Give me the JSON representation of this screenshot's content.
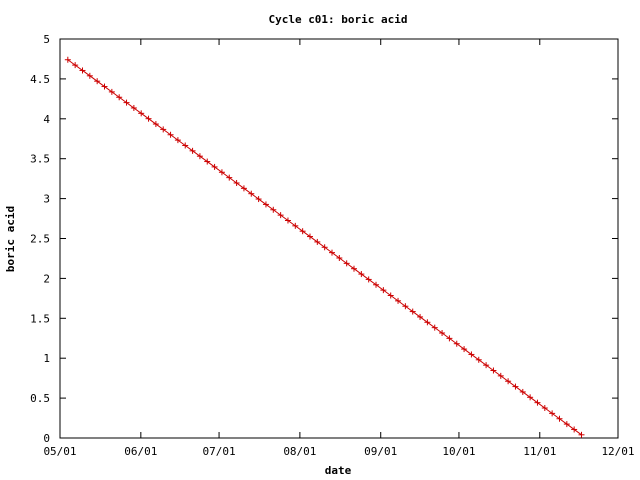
{
  "chart_data": {
    "type": "line",
    "title": "Cycle c01: boric acid",
    "xlabel": "date",
    "ylabel": "boric acid",
    "x_ticks": [
      "05/01",
      "06/01",
      "07/01",
      "08/01",
      "09/01",
      "10/01",
      "11/01",
      "12/01"
    ],
    "y_ticks": [
      "0",
      "0.5",
      "1",
      "1.5",
      "2",
      "2.5",
      "3",
      "3.5",
      "4",
      "4.5",
      "5"
    ],
    "xlim": [
      "05/01",
      "12/01"
    ],
    "ylim": [
      0,
      5
    ],
    "grid": false,
    "legend": "none",
    "series": [
      {
        "color": "#cc0000",
        "marker": "plus",
        "x_start": "05/04",
        "x_end": "11/17",
        "y_start": 4.74,
        "y_end": 0.04,
        "points": 71
      }
    ]
  }
}
